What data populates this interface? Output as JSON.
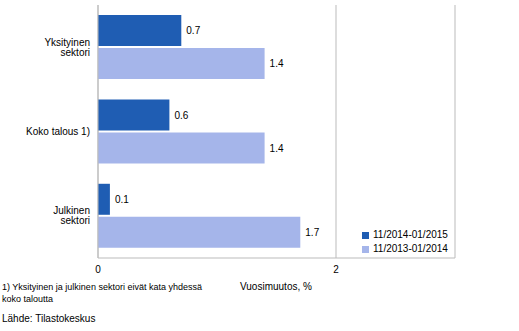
{
  "chart_data": {
    "type": "bar",
    "orientation": "horizontal",
    "categories": [
      "Yksityinen sektori",
      "Koko talous 1)",
      "Julkinen sektori"
    ],
    "series": [
      {
        "name": "11/2014-01/2015",
        "color": "#1f5db3",
        "values": [
          0.7,
          0.6,
          0.1
        ]
      },
      {
        "name": "11/2013-01/2014",
        "color": "#a5b5ea",
        "values": [
          1.4,
          1.4,
          1.7
        ]
      }
    ],
    "xlabel": "Vuosimuutos, %",
    "xlim": [
      0,
      3
    ],
    "xticks": [
      0,
      2
    ],
    "grid": true,
    "data_labels": true,
    "legend": "lower right",
    "annotations": [
      "1) Yksityinen ja julkinen sektori eivät kata yhdessä koko taloutta",
      "Lähde: Tilastokeskus"
    ]
  }
}
